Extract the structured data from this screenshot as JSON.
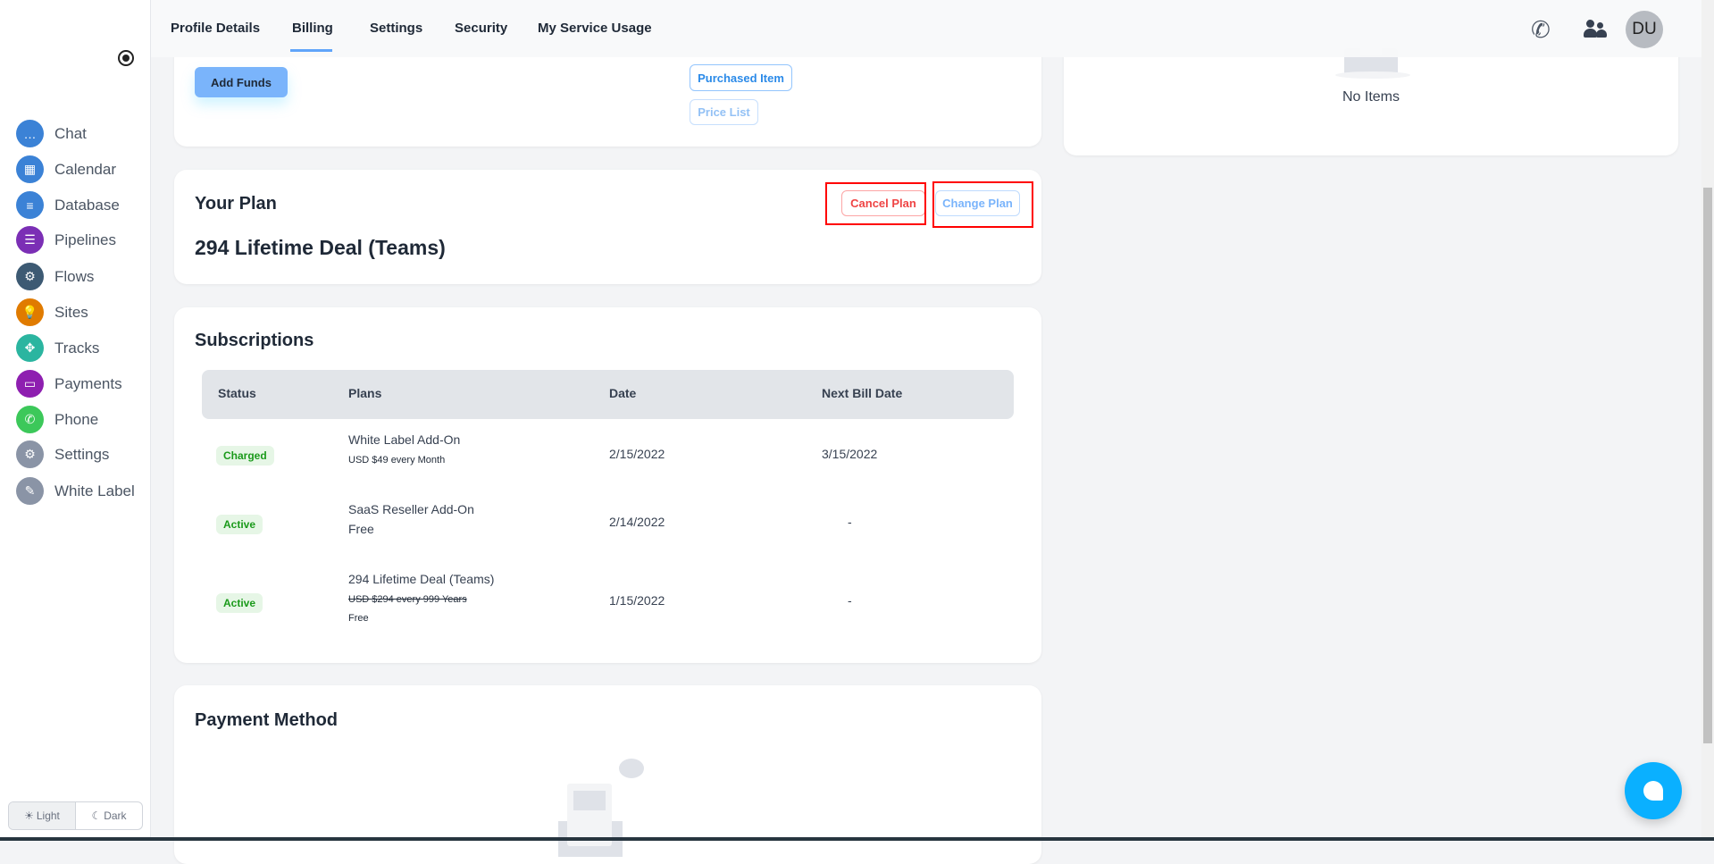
{
  "sidebar": {
    "items": [
      {
        "label": "Chat",
        "icon": "chat-icon",
        "color": "#3b82d6"
      },
      {
        "label": "Calendar",
        "icon": "calendar-icon",
        "color": "#3b82d6"
      },
      {
        "label": "Database",
        "icon": "database-icon",
        "color": "#3b82d6"
      },
      {
        "label": "Pipelines",
        "icon": "clipboard-icon",
        "color": "#7b2fb5"
      },
      {
        "label": "Flows",
        "icon": "gear-cycle-icon",
        "color": "#3d5a73"
      },
      {
        "label": "Sites",
        "icon": "lightbulb-icon",
        "color": "#e07b00"
      },
      {
        "label": "Tracks",
        "icon": "arrows-icon",
        "color": "#2bb5a0"
      },
      {
        "label": "Payments",
        "icon": "card-icon",
        "color": "#8e1fb0"
      },
      {
        "label": "Phone",
        "icon": "phone-icon",
        "color": "#3cc85a"
      },
      {
        "label": "Settings",
        "icon": "wrench-gear-icon",
        "color": "#8a94a6"
      },
      {
        "label": "White Label",
        "icon": "palette-icon",
        "color": "#8a94a6"
      }
    ],
    "theme": {
      "light": "Light",
      "dark": "Dark",
      "selected": "Light"
    }
  },
  "tabs": [
    {
      "label": "Profile Details"
    },
    {
      "label": "Billing",
      "active": true
    },
    {
      "label": "Settings"
    },
    {
      "label": "Security"
    },
    {
      "label": "My Service Usage"
    }
  ],
  "header": {
    "avatar": "DU"
  },
  "funds": {
    "add_funds": "Add Funds",
    "purchased_item": "Purchased Item",
    "price_list": "Price List"
  },
  "right_panel": {
    "empty": "No Items"
  },
  "plan": {
    "title": "Your Plan",
    "name": "294 Lifetime Deal (Teams)",
    "cancel": "Cancel Plan",
    "change": "Change Plan"
  },
  "subscriptions": {
    "title": "Subscriptions",
    "headers": [
      "Status",
      "Plans",
      "Date",
      "Next Bill Date"
    ],
    "rows": [
      {
        "status": "Charged",
        "plan": "White Label Add-On",
        "price": "USD $49 every Month",
        "date": "2/15/2022",
        "next": "3/15/2022"
      },
      {
        "status": "Active",
        "plan": "SaaS Reseller Add-On",
        "price": "Free",
        "date": "2/14/2022",
        "next": "-"
      },
      {
        "status": "Active",
        "plan": "294 Lifetime Deal (Teams)",
        "old_price": "USD $294 every 999 Years",
        "price": "Free",
        "date": "1/15/2022",
        "next": "-"
      }
    ]
  },
  "payment": {
    "title": "Payment Method"
  },
  "colors": {
    "accent": "#60a5fa",
    "danger": "#ef4444",
    "success": "#1a9a1a",
    "fab": "#0ab0ff"
  }
}
